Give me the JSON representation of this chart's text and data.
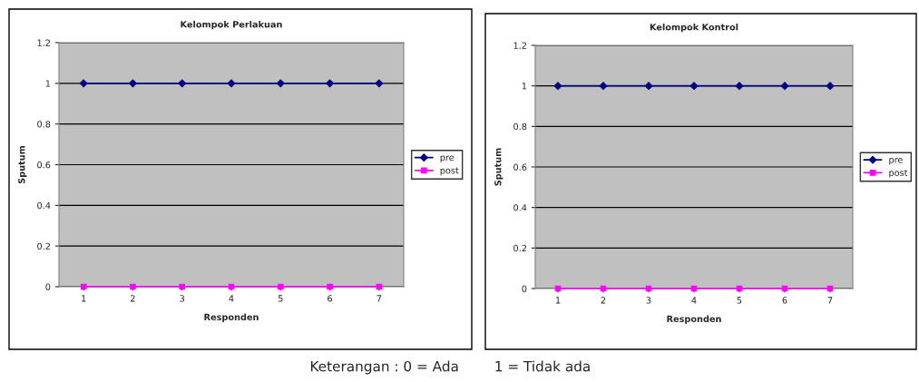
{
  "chart_data": [
    {
      "type": "line",
      "title": "Kelompok Perlakuan",
      "xlabel": "Responden",
      "ylabel": "Sputum",
      "categories": [
        "1",
        "2",
        "3",
        "4",
        "5",
        "6",
        "7"
      ],
      "series": [
        {
          "name": "pre",
          "color": "#000080",
          "marker": "diamond",
          "values": [
            1,
            1,
            1,
            1,
            1,
            1,
            1
          ]
        },
        {
          "name": "post",
          "color": "#ff00ff",
          "marker": "square",
          "values": [
            0,
            0,
            0,
            0,
            0,
            0,
            0
          ]
        }
      ],
      "ylim": [
        0,
        1.2
      ],
      "yticks": [
        0,
        0.2,
        0.4,
        0.6,
        0.8,
        1,
        1.2
      ],
      "grid": "y",
      "legend": "right",
      "line_style": "solid"
    },
    {
      "type": "line",
      "title": "Kelompok Kontrol",
      "xlabel": "Responden",
      "ylabel": "Sputum",
      "categories": [
        "1",
        "2",
        "3",
        "4",
        "5",
        "6",
        "7"
      ],
      "series": [
        {
          "name": "pre",
          "color": "#000080",
          "marker": "diamond",
          "values": [
            1,
            1,
            1,
            1,
            1,
            1,
            1
          ]
        },
        {
          "name": "post",
          "color": "#ff00ff",
          "marker": "square",
          "values": [
            0,
            0,
            0,
            0,
            0,
            0,
            0
          ]
        }
      ],
      "ylim": [
        0,
        1.2
      ],
      "yticks": [
        0,
        0.2,
        0.4,
        0.6,
        0.8,
        1,
        1.2
      ],
      "grid": "y",
      "legend": "right",
      "line_style": "solid",
      "annotations": [
        "Keterangan : 0 = Ada        1 = Tidak ada"
      ]
    }
  ]
}
